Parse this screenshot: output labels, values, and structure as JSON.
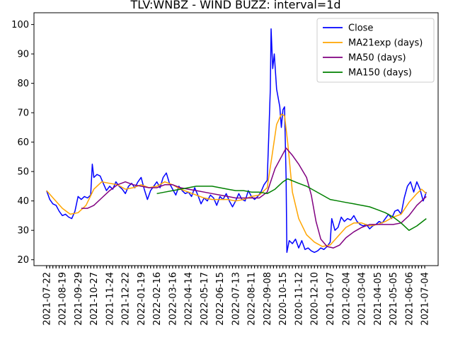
{
  "chart_data": {
    "type": "line",
    "title": "TLV:WNBZ - WIND BUZZ: interval=1d",
    "xlabel": "",
    "ylabel": "",
    "ylim": [
      18,
      104
    ],
    "yticks": [
      20,
      30,
      40,
      50,
      60,
      70,
      80,
      90,
      100
    ],
    "categories": [
      "2021-07-22",
      "2021-08-19",
      "2021-09-29",
      "2021-10-27",
      "2021-11-24",
      "2021-12-22",
      "2022-01-19",
      "2022-02-16",
      "2022-03-16",
      "2022-04-14",
      "2022-05-17",
      "2022-06-15",
      "2022-07-13",
      "2022-08-11",
      "2022-09-08",
      "2020-10-15",
      "2020-11-12",
      "2020-12-10",
      "2021-01-07",
      "2021-02-04",
      "2021-03-04",
      "2021-04-05",
      "2021-05-05",
      "2021-06-06",
      "2021-07-04"
    ],
    "grid": false,
    "legend_position": "top-right",
    "series": [
      {
        "name": "Close",
        "color": "#0000ff",
        "values": [
          {
            "x": 0.0,
            "y": 43.5
          },
          {
            "x": 0.2,
            "y": 40.5
          },
          {
            "x": 0.4,
            "y": 39.0
          },
          {
            "x": 0.6,
            "y": 38.5
          },
          {
            "x": 0.8,
            "y": 36.5
          },
          {
            "x": 1.0,
            "y": 35.0
          },
          {
            "x": 1.2,
            "y": 35.5
          },
          {
            "x": 1.4,
            "y": 34.5
          },
          {
            "x": 1.6,
            "y": 34.0
          },
          {
            "x": 1.8,
            "y": 36.5
          },
          {
            "x": 2.0,
            "y": 41.5
          },
          {
            "x": 2.2,
            "y": 40.5
          },
          {
            "x": 2.4,
            "y": 41.5
          },
          {
            "x": 2.6,
            "y": 41.0
          },
          {
            "x": 2.8,
            "y": 42.0
          },
          {
            "x": 2.9,
            "y": 52.5
          },
          {
            "x": 3.0,
            "y": 48.0
          },
          {
            "x": 3.2,
            "y": 49.0
          },
          {
            "x": 3.4,
            "y": 48.5
          },
          {
            "x": 3.6,
            "y": 46.0
          },
          {
            "x": 3.8,
            "y": 43.5
          },
          {
            "x": 4.0,
            "y": 45.0
          },
          {
            "x": 4.2,
            "y": 44.0
          },
          {
            "x": 4.4,
            "y": 46.5
          },
          {
            "x": 4.6,
            "y": 45.0
          },
          {
            "x": 4.8,
            "y": 44.0
          },
          {
            "x": 5.0,
            "y": 42.5
          },
          {
            "x": 5.2,
            "y": 45.0
          },
          {
            "x": 5.4,
            "y": 46.0
          },
          {
            "x": 5.6,
            "y": 44.5
          },
          {
            "x": 5.8,
            "y": 46.5
          },
          {
            "x": 6.0,
            "y": 48.0
          },
          {
            "x": 6.2,
            "y": 44.0
          },
          {
            "x": 6.4,
            "y": 40.5
          },
          {
            "x": 6.6,
            "y": 43.5
          },
          {
            "x": 6.8,
            "y": 45.0
          },
          {
            "x": 7.0,
            "y": 46.5
          },
          {
            "x": 7.2,
            "y": 44.5
          },
          {
            "x": 7.4,
            "y": 48.0
          },
          {
            "x": 7.6,
            "y": 49.5
          },
          {
            "x": 7.8,
            "y": 46.0
          },
          {
            "x": 8.0,
            "y": 44.0
          },
          {
            "x": 8.2,
            "y": 42.0
          },
          {
            "x": 8.4,
            "y": 45.0
          },
          {
            "x": 8.6,
            "y": 43.5
          },
          {
            "x": 8.8,
            "y": 42.5
          },
          {
            "x": 9.0,
            "y": 43.0
          },
          {
            "x": 9.2,
            "y": 41.5
          },
          {
            "x": 9.4,
            "y": 44.5
          },
          {
            "x": 9.6,
            "y": 42.0
          },
          {
            "x": 9.8,
            "y": 39.0
          },
          {
            "x": 10.0,
            "y": 41.0
          },
          {
            "x": 10.2,
            "y": 40.0
          },
          {
            "x": 10.4,
            "y": 42.0
          },
          {
            "x": 10.6,
            "y": 41.0
          },
          {
            "x": 10.8,
            "y": 38.5
          },
          {
            "x": 11.0,
            "y": 41.5
          },
          {
            "x": 11.2,
            "y": 40.5
          },
          {
            "x": 11.4,
            "y": 42.5
          },
          {
            "x": 11.6,
            "y": 40.0
          },
          {
            "x": 11.8,
            "y": 38.0
          },
          {
            "x": 12.0,
            "y": 40.0
          },
          {
            "x": 12.2,
            "y": 42.5
          },
          {
            "x": 12.4,
            "y": 40.5
          },
          {
            "x": 12.6,
            "y": 40.0
          },
          {
            "x": 12.8,
            "y": 43.5
          },
          {
            "x": 13.0,
            "y": 41.5
          },
          {
            "x": 13.2,
            "y": 40.5
          },
          {
            "x": 13.4,
            "y": 41.5
          },
          {
            "x": 13.6,
            "y": 43.0
          },
          {
            "x": 13.8,
            "y": 45.5
          },
          {
            "x": 14.0,
            "y": 47.0
          },
          {
            "x": 14.1,
            "y": 62.0
          },
          {
            "x": 14.2,
            "y": 78.0
          },
          {
            "x": 14.25,
            "y": 98.5
          },
          {
            "x": 14.35,
            "y": 85.0
          },
          {
            "x": 14.45,
            "y": 90.0
          },
          {
            "x": 14.6,
            "y": 78.0
          },
          {
            "x": 14.8,
            "y": 72.0
          },
          {
            "x": 14.9,
            "y": 65.0
          },
          {
            "x": 15.0,
            "y": 71.0
          },
          {
            "x": 15.1,
            "y": 72.0
          },
          {
            "x": 15.2,
            "y": 48.0
          },
          {
            "x": 15.25,
            "y": 22.5
          },
          {
            "x": 15.4,
            "y": 26.5
          },
          {
            "x": 15.6,
            "y": 25.5
          },
          {
            "x": 15.8,
            "y": 27.0
          },
          {
            "x": 16.0,
            "y": 24.0
          },
          {
            "x": 16.2,
            "y": 26.5
          },
          {
            "x": 16.4,
            "y": 23.5
          },
          {
            "x": 16.6,
            "y": 24.0
          },
          {
            "x": 16.8,
            "y": 23.0
          },
          {
            "x": 17.0,
            "y": 22.5
          },
          {
            "x": 17.2,
            "y": 23.0
          },
          {
            "x": 17.4,
            "y": 24.0
          },
          {
            "x": 17.6,
            "y": 23.5
          },
          {
            "x": 17.8,
            "y": 24.5
          },
          {
            "x": 18.0,
            "y": 26.0
          },
          {
            "x": 18.1,
            "y": 34.0
          },
          {
            "x": 18.3,
            "y": 30.0
          },
          {
            "x": 18.5,
            "y": 31.0
          },
          {
            "x": 18.7,
            "y": 34.5
          },
          {
            "x": 18.9,
            "y": 33.0
          },
          {
            "x": 19.1,
            "y": 34.0
          },
          {
            "x": 19.3,
            "y": 33.5
          },
          {
            "x": 19.5,
            "y": 35.0
          },
          {
            "x": 19.7,
            "y": 33.0
          },
          {
            "x": 19.9,
            "y": 32.0
          },
          {
            "x": 20.1,
            "y": 31.5
          },
          {
            "x": 20.3,
            "y": 32.0
          },
          {
            "x": 20.5,
            "y": 30.5
          },
          {
            "x": 20.7,
            "y": 31.5
          },
          {
            "x": 20.9,
            "y": 32.0
          },
          {
            "x": 21.1,
            "y": 33.0
          },
          {
            "x": 21.3,
            "y": 32.5
          },
          {
            "x": 21.5,
            "y": 34.0
          },
          {
            "x": 21.7,
            "y": 35.5
          },
          {
            "x": 21.9,
            "y": 34.0
          },
          {
            "x": 22.1,
            "y": 36.5
          },
          {
            "x": 22.3,
            "y": 37.0
          },
          {
            "x": 22.5,
            "y": 35.5
          },
          {
            "x": 22.7,
            "y": 41.0
          },
          {
            "x": 22.9,
            "y": 45.0
          },
          {
            "x": 23.1,
            "y": 46.5
          },
          {
            "x": 23.3,
            "y": 43.0
          },
          {
            "x": 23.5,
            "y": 46.5
          },
          {
            "x": 23.7,
            "y": 44.0
          },
          {
            "x": 23.9,
            "y": 40.0
          },
          {
            "x": 24.1,
            "y": 43.0
          }
        ]
      },
      {
        "name": "MA21exp (days)",
        "color": "#ffa500",
        "values": [
          {
            "x": 0.0,
            "y": 43.5
          },
          {
            "x": 0.5,
            "y": 40.5
          },
          {
            "x": 1.0,
            "y": 37.5
          },
          {
            "x": 1.5,
            "y": 35.5
          },
          {
            "x": 2.0,
            "y": 36.0
          },
          {
            "x": 2.5,
            "y": 38.5
          },
          {
            "x": 3.0,
            "y": 44.0
          },
          {
            "x": 3.5,
            "y": 46.5
          },
          {
            "x": 4.0,
            "y": 46.0
          },
          {
            "x": 4.5,
            "y": 45.5
          },
          {
            "x": 5.0,
            "y": 44.0
          },
          {
            "x": 5.5,
            "y": 44.5
          },
          {
            "x": 6.0,
            "y": 45.5
          },
          {
            "x": 6.5,
            "y": 44.5
          },
          {
            "x": 7.0,
            "y": 45.0
          },
          {
            "x": 7.5,
            "y": 46.5
          },
          {
            "x": 8.0,
            "y": 45.5
          },
          {
            "x": 8.5,
            "y": 44.0
          },
          {
            "x": 9.0,
            "y": 43.0
          },
          {
            "x": 9.5,
            "y": 42.0
          },
          {
            "x": 10.0,
            "y": 41.0
          },
          {
            "x": 10.5,
            "y": 40.5
          },
          {
            "x": 11.0,
            "y": 40.5
          },
          {
            "x": 11.5,
            "y": 40.5
          },
          {
            "x": 12.0,
            "y": 40.0
          },
          {
            "x": 12.5,
            "y": 40.5
          },
          {
            "x": 13.0,
            "y": 41.5
          },
          {
            "x": 13.5,
            "y": 42.0
          },
          {
            "x": 14.0,
            "y": 44.5
          },
          {
            "x": 14.3,
            "y": 55.0
          },
          {
            "x": 14.6,
            "y": 66.0
          },
          {
            "x": 14.9,
            "y": 69.5
          },
          {
            "x": 15.1,
            "y": 69.0
          },
          {
            "x": 15.3,
            "y": 60.0
          },
          {
            "x": 15.6,
            "y": 43.0
          },
          {
            "x": 16.0,
            "y": 34.0
          },
          {
            "x": 16.5,
            "y": 28.5
          },
          {
            "x": 17.0,
            "y": 26.0
          },
          {
            "x": 17.5,
            "y": 24.5
          },
          {
            "x": 18.0,
            "y": 25.0
          },
          {
            "x": 18.5,
            "y": 28.0
          },
          {
            "x": 19.0,
            "y": 31.0
          },
          {
            "x": 19.5,
            "y": 32.5
          },
          {
            "x": 20.0,
            "y": 32.5
          },
          {
            "x": 20.5,
            "y": 31.5
          },
          {
            "x": 21.0,
            "y": 32.0
          },
          {
            "x": 21.5,
            "y": 33.0
          },
          {
            "x": 22.0,
            "y": 34.5
          },
          {
            "x": 22.5,
            "y": 35.5
          },
          {
            "x": 23.0,
            "y": 39.5
          },
          {
            "x": 23.5,
            "y": 42.5
          },
          {
            "x": 23.8,
            "y": 44.0
          },
          {
            "x": 24.1,
            "y": 42.5
          }
        ]
      },
      {
        "name": "MA50 (days)",
        "color": "#800080",
        "values": [
          {
            "x": 2.2,
            "y": 37.5
          },
          {
            "x": 2.6,
            "y": 37.5
          },
          {
            "x": 3.0,
            "y": 38.5
          },
          {
            "x": 3.5,
            "y": 41.0
          },
          {
            "x": 4.0,
            "y": 43.5
          },
          {
            "x": 4.5,
            "y": 45.5
          },
          {
            "x": 5.0,
            "y": 46.5
          },
          {
            "x": 5.5,
            "y": 45.5
          },
          {
            "x": 6.0,
            "y": 45.0
          },
          {
            "x": 6.5,
            "y": 44.5
          },
          {
            "x": 7.0,
            "y": 44.5
          },
          {
            "x": 7.5,
            "y": 45.5
          },
          {
            "x": 8.0,
            "y": 45.5
          },
          {
            "x": 8.5,
            "y": 44.5
          },
          {
            "x": 9.0,
            "y": 44.0
          },
          {
            "x": 9.5,
            "y": 43.5
          },
          {
            "x": 10.0,
            "y": 43.0
          },
          {
            "x": 10.5,
            "y": 42.5
          },
          {
            "x": 11.0,
            "y": 42.0
          },
          {
            "x": 11.5,
            "y": 41.5
          },
          {
            "x": 12.0,
            "y": 41.0
          },
          {
            "x": 12.5,
            "y": 41.0
          },
          {
            "x": 13.0,
            "y": 41.0
          },
          {
            "x": 13.5,
            "y": 41.0
          },
          {
            "x": 14.0,
            "y": 43.0
          },
          {
            "x": 14.5,
            "y": 51.0
          },
          {
            "x": 15.0,
            "y": 56.0
          },
          {
            "x": 15.2,
            "y": 58.0
          },
          {
            "x": 15.6,
            "y": 55.5
          },
          {
            "x": 16.0,
            "y": 52.5
          },
          {
            "x": 16.5,
            "y": 48.0
          },
          {
            "x": 16.8,
            "y": 42.0
          },
          {
            "x": 17.1,
            "y": 33.0
          },
          {
            "x": 17.4,
            "y": 27.0
          },
          {
            "x": 17.8,
            "y": 24.5
          },
          {
            "x": 18.2,
            "y": 24.0
          },
          {
            "x": 18.6,
            "y": 25.0
          },
          {
            "x": 19.0,
            "y": 27.5
          },
          {
            "x": 19.5,
            "y": 29.5
          },
          {
            "x": 20.0,
            "y": 31.0
          },
          {
            "x": 20.5,
            "y": 32.0
          },
          {
            "x": 21.0,
            "y": 32.0
          },
          {
            "x": 21.5,
            "y": 32.0
          },
          {
            "x": 22.0,
            "y": 32.0
          },
          {
            "x": 22.5,
            "y": 32.5
          },
          {
            "x": 23.0,
            "y": 35.0
          },
          {
            "x": 23.5,
            "y": 38.5
          },
          {
            "x": 24.1,
            "y": 41.5
          }
        ]
      },
      {
        "name": "MA150 (days)",
        "color": "#008000",
        "values": [
          {
            "x": 7.0,
            "y": 42.5
          },
          {
            "x": 7.5,
            "y": 43.0
          },
          {
            "x": 8.0,
            "y": 43.5
          },
          {
            "x": 8.5,
            "y": 44.0
          },
          {
            "x": 9.0,
            "y": 44.5
          },
          {
            "x": 9.5,
            "y": 45.0
          },
          {
            "x": 10.0,
            "y": 45.0
          },
          {
            "x": 10.5,
            "y": 45.0
          },
          {
            "x": 11.0,
            "y": 44.5
          },
          {
            "x": 11.5,
            "y": 44.0
          },
          {
            "x": 12.0,
            "y": 43.5
          },
          {
            "x": 12.5,
            "y": 43.5
          },
          {
            "x": 13.0,
            "y": 43.0
          },
          {
            "x": 13.5,
            "y": 43.0
          },
          {
            "x": 14.0,
            "y": 42.5
          },
          {
            "x": 14.5,
            "y": 44.0
          },
          {
            "x": 15.0,
            "y": 46.5
          },
          {
            "x": 15.3,
            "y": 47.5
          },
          {
            "x": 16.0,
            "y": 46.0
          },
          {
            "x": 16.5,
            "y": 45.0
          },
          {
            "x": 17.0,
            "y": 43.5
          },
          {
            "x": 17.5,
            "y": 42.0
          },
          {
            "x": 18.0,
            "y": 40.5
          },
          {
            "x": 18.5,
            "y": 40.0
          },
          {
            "x": 19.0,
            "y": 39.5
          },
          {
            "x": 19.5,
            "y": 39.0
          },
          {
            "x": 20.0,
            "y": 38.5
          },
          {
            "x": 20.5,
            "y": 38.0
          },
          {
            "x": 21.0,
            "y": 37.0
          },
          {
            "x": 21.5,
            "y": 36.0
          },
          {
            "x": 22.0,
            "y": 34.5
          },
          {
            "x": 22.5,
            "y": 32.5
          },
          {
            "x": 23.0,
            "y": 30.0
          },
          {
            "x": 23.5,
            "y": 31.5
          },
          {
            "x": 24.1,
            "y": 34.0
          }
        ]
      }
    ]
  }
}
